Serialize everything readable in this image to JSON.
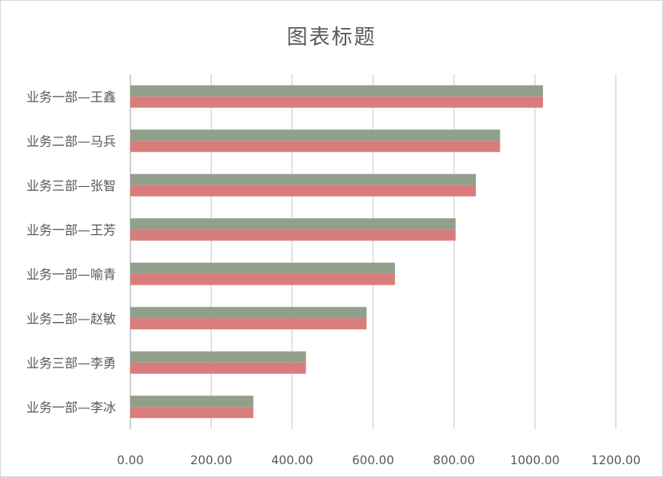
{
  "chart_data": {
    "type": "bar",
    "orientation": "horizontal",
    "title": "图表标题",
    "categories": [
      "业务一部—王鑫",
      "业务二部—马兵",
      "业务三部—张智",
      "业务一部—王芳",
      "业务一部—喻青",
      "业务二部—赵敏",
      "业务三部—李勇",
      "业务一部—李冰"
    ],
    "series": [
      {
        "color": "#929f8a",
        "values": [
          1020,
          914,
          854,
          804,
          654,
          584,
          434,
          304
        ]
      },
      {
        "color": "#d97c7c",
        "values": [
          1020,
          914,
          854,
          804,
          654,
          584,
          434,
          304
        ]
      }
    ],
    "x_ticks": [
      "0.00",
      "200.00",
      "400.00",
      "600.00",
      "800.00",
      "1000.00",
      "1200.00"
    ],
    "xlim": [
      0,
      1200
    ],
    "grid": true,
    "legend": "none"
  }
}
